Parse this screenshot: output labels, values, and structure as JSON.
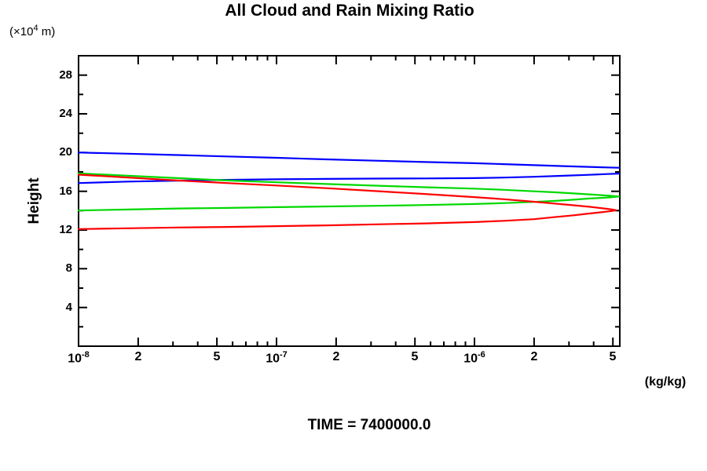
{
  "title": "All Cloud and Rain Mixing Ratio",
  "caption": "TIME = 7400000.0",
  "y_axis": {
    "unit_prefix": "(×10",
    "unit_exp": "4",
    "unit_suffix": " m)",
    "label": "Height",
    "range": [
      0,
      30
    ],
    "major_ticks": [
      4,
      8,
      12,
      16,
      20,
      24,
      28
    ],
    "minor_ticks": [
      2,
      6,
      10,
      14,
      18,
      22,
      26,
      30
    ]
  },
  "x_axis": {
    "unit": "(kg/kg)",
    "scale": "log10",
    "range": [
      1e-08,
      5.42e-06
    ],
    "major_ticks": [
      {
        "value": 1e-08,
        "base": "10",
        "exp": "-8"
      },
      {
        "value": 2e-08,
        "text": "2"
      },
      {
        "value": 5e-08,
        "text": "5"
      },
      {
        "value": 1e-07,
        "base": "10",
        "exp": "-7"
      },
      {
        "value": 2e-07,
        "text": "2"
      },
      {
        "value": 5e-07,
        "text": "5"
      },
      {
        "value": 1e-06,
        "base": "10",
        "exp": "-6"
      },
      {
        "value": 2e-06,
        "text": "2"
      },
      {
        "value": 5e-06,
        "text": "5"
      }
    ],
    "minor_ticks": [
      3e-08,
      4e-08,
      6e-08,
      7e-08,
      8e-08,
      9e-08,
      3e-07,
      4e-07,
      6e-07,
      7e-07,
      8e-07,
      9e-07,
      3e-06,
      4e-06
    ]
  },
  "chart_data": {
    "type": "line",
    "title": "All Cloud and Rain Mixing Ratio",
    "xlabel": "(kg/kg)",
    "ylabel": "Height (x10^4 m)",
    "x_scale": "log",
    "xlim": [
      1e-08,
      5.42e-06
    ],
    "ylim": [
      0,
      30
    ],
    "grid": false,
    "legend": "none",
    "colors": {
      "blue": "#0000ff",
      "green": "#00d800",
      "red": "#ff0000"
    },
    "series": [
      {
        "name": "blue-profile-upper-branch",
        "color_key": "blue",
        "points": [
          [
            1e-08,
            20.0
          ],
          [
            1.78e-08,
            19.88
          ],
          [
            3.16e-08,
            19.74
          ],
          [
            5.62e-08,
            19.6
          ],
          [
            1e-07,
            19.46
          ],
          [
            1.78e-07,
            19.3
          ],
          [
            3.16e-07,
            19.16
          ],
          [
            5.62e-07,
            19.02
          ],
          [
            1e-06,
            18.9
          ],
          [
            1.41e-06,
            18.8
          ],
          [
            2e-06,
            18.7
          ],
          [
            2.82e-06,
            18.6
          ],
          [
            3.8e-06,
            18.52
          ],
          [
            4.68e-06,
            18.46
          ],
          [
            5.37e-06,
            18.43
          ]
        ]
      },
      {
        "name": "blue-profile-lower-branch",
        "color_key": "blue",
        "points": [
          [
            1e-08,
            16.85
          ],
          [
            1.78e-08,
            17.0
          ],
          [
            3.16e-08,
            17.1
          ],
          [
            5.62e-08,
            17.18
          ],
          [
            1e-07,
            17.24
          ],
          [
            1.78e-07,
            17.28
          ],
          [
            3.16e-07,
            17.31
          ],
          [
            5.62e-07,
            17.33
          ],
          [
            1e-06,
            17.36
          ],
          [
            1.41e-06,
            17.42
          ],
          [
            2e-06,
            17.5
          ],
          [
            2.82e-06,
            17.6
          ],
          [
            3.8e-06,
            17.7
          ],
          [
            4.68e-06,
            17.78
          ],
          [
            5.37e-06,
            17.83
          ]
        ]
      },
      {
        "name": "green-profile",
        "color_key": "green",
        "points": [
          [
            1e-08,
            17.85
          ],
          [
            1.78e-08,
            17.6
          ],
          [
            3.16e-08,
            17.36
          ],
          [
            5.62e-08,
            17.12
          ],
          [
            1e-07,
            16.93
          ],
          [
            1.78e-07,
            16.75
          ],
          [
            3.16e-07,
            16.58
          ],
          [
            5.62e-07,
            16.42
          ],
          [
            1e-06,
            16.27
          ],
          [
            1.41e-06,
            16.15
          ],
          [
            2e-06,
            16.0
          ],
          [
            2.51e-06,
            15.9
          ],
          [
            3.16e-06,
            15.78
          ],
          [
            3.8e-06,
            15.68
          ],
          [
            4.37e-06,
            15.6
          ],
          [
            4.9e-06,
            15.53
          ],
          [
            5.37e-06,
            15.46
          ],
          [
            4.9e-06,
            15.38
          ],
          [
            4.37e-06,
            15.32
          ],
          [
            3.8e-06,
            15.25
          ],
          [
            3.16e-06,
            15.13
          ],
          [
            2.51e-06,
            15.0
          ],
          [
            2e-06,
            14.9
          ],
          [
            1.41e-06,
            14.78
          ],
          [
            1e-06,
            14.68
          ],
          [
            5.62e-07,
            14.58
          ],
          [
            3.16e-07,
            14.5
          ],
          [
            1.78e-07,
            14.43
          ],
          [
            1e-07,
            14.36
          ],
          [
            5.62e-08,
            14.28
          ],
          [
            3.16e-08,
            14.22
          ],
          [
            1.78e-08,
            14.12
          ],
          [
            1e-08,
            14.02
          ]
        ]
      },
      {
        "name": "red-profile",
        "color_key": "red",
        "points": [
          [
            1e-08,
            17.72
          ],
          [
            1.78e-08,
            17.42
          ],
          [
            3.16e-08,
            17.12
          ],
          [
            5.62e-08,
            16.85
          ],
          [
            1e-07,
            16.6
          ],
          [
            1.78e-07,
            16.32
          ],
          [
            3.16e-07,
            16.02
          ],
          [
            5.62e-07,
            15.72
          ],
          [
            1e-06,
            15.4
          ],
          [
            1.41e-06,
            15.18
          ],
          [
            2e-06,
            14.92
          ],
          [
            2.51e-06,
            14.74
          ],
          [
            3.16e-06,
            14.55
          ],
          [
            3.8e-06,
            14.4
          ],
          [
            4.37e-06,
            14.26
          ],
          [
            4.79e-06,
            14.16
          ],
          [
            5.01e-06,
            14.1
          ],
          [
            5.18e-06,
            14.05
          ],
          [
            5.01e-06,
            13.99
          ],
          [
            4.79e-06,
            13.93
          ],
          [
            4.37e-06,
            13.83
          ],
          [
            3.8e-06,
            13.7
          ],
          [
            3.16e-06,
            13.52
          ],
          [
            2.51e-06,
            13.32
          ],
          [
            2e-06,
            13.12
          ],
          [
            1.41e-06,
            12.95
          ],
          [
            1e-06,
            12.82
          ],
          [
            5.62e-07,
            12.68
          ],
          [
            3.16e-07,
            12.58
          ],
          [
            1.78e-07,
            12.48
          ],
          [
            1e-07,
            12.4
          ],
          [
            5.62e-08,
            12.32
          ],
          [
            3.16e-08,
            12.26
          ],
          [
            1.78e-08,
            12.18
          ],
          [
            1e-08,
            12.1
          ]
        ]
      }
    ]
  }
}
